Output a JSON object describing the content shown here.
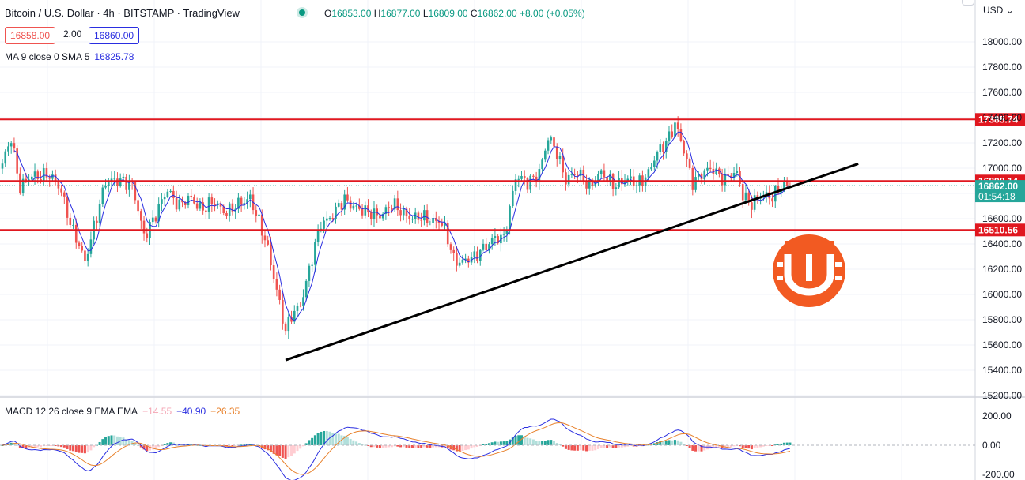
{
  "header": {
    "title": "Bitcoin / U.S. Dollar · 4h · BITSTAMP · TradingView",
    "open_label": "O",
    "open": "16853.00",
    "high_label": "H",
    "high": "16877.00",
    "low_label": "L",
    "low": "16809.00",
    "close_label": "C",
    "close": "16862.00",
    "change": "+8.00 (+0.05%)"
  },
  "trade": {
    "sell": "16858.00",
    "spread": "2.00",
    "buy": "16860.00"
  },
  "ma_legend": {
    "label": "MA 9 close 0 SMA 5",
    "value": "16825.78"
  },
  "macd_legend": {
    "label": "MACD 12 26 close 9 EMA EMA",
    "hist": "−14.55",
    "macd": "−40.90",
    "signal": "−26.35"
  },
  "currency": "USD",
  "colors": {
    "up": "#26a69a",
    "down": "#ef5350",
    "ma": "#2a2ee0",
    "level": "#e0171f",
    "signal": "#e8822d",
    "logo": "#f25a22"
  },
  "price_axis": {
    "ticks": [
      "18000.00",
      "17800.00",
      "17600.00",
      "17400.00",
      "17200.00",
      "17000.00",
      "16800.00",
      "16600.00",
      "16400.00",
      "16200.00",
      "16000.00",
      "15800.00",
      "15600.00",
      "15400.00",
      "15200.00"
    ],
    "current_price": "16862.00",
    "countdown": "01:54:18"
  },
  "macd_axis": {
    "ticks": [
      "200.00",
      "0.00",
      "-200.00"
    ]
  },
  "chart_data": {
    "type": "candlestick",
    "timeframe": "4h",
    "ylim": [
      15200,
      18150
    ],
    "levels": [
      {
        "label": "17385.74",
        "value": 17385.74
      },
      {
        "label": "16898.14",
        "value": 16898.14
      },
      {
        "label": "16510.56",
        "value": 16510.56
      }
    ],
    "trendline": {
      "start_index": 96,
      "start_price": 15480,
      "end_index": 266,
      "end_price": 16960
    },
    "close_anchors": [
      [
        0,
        17020
      ],
      [
        3,
        17250
      ],
      [
        6,
        16850
      ],
      [
        10,
        16930
      ],
      [
        15,
        16960
      ],
      [
        20,
        16820
      ],
      [
        24,
        16500
      ],
      [
        28,
        16250
      ],
      [
        31,
        16550
      ],
      [
        35,
        16880
      ],
      [
        40,
        16920
      ],
      [
        44,
        16850
      ],
      [
        48,
        16480
      ],
      [
        52,
        16620
      ],
      [
        56,
        16840
      ],
      [
        60,
        16700
      ],
      [
        64,
        16760
      ],
      [
        68,
        16680
      ],
      [
        72,
        16720
      ],
      [
        76,
        16660
      ],
      [
        80,
        16700
      ],
      [
        84,
        16780
      ],
      [
        86,
        16640
      ],
      [
        90,
        16350
      ],
      [
        93,
        16050
      ],
      [
        96,
        15700
      ],
      [
        98,
        15820
      ],
      [
        101,
        15930
      ],
      [
        105,
        16280
      ],
      [
        108,
        16560
      ],
      [
        112,
        16640
      ],
      [
        116,
        16740
      ],
      [
        120,
        16700
      ],
      [
        124,
        16630
      ],
      [
        128,
        16640
      ],
      [
        132,
        16700
      ],
      [
        136,
        16650
      ],
      [
        140,
        16600
      ],
      [
        144,
        16600
      ],
      [
        148,
        16590
      ],
      [
        150,
        16500
      ],
      [
        153,
        16280
      ],
      [
        156,
        16270
      ],
      [
        160,
        16280
      ],
      [
        163,
        16380
      ],
      [
        166,
        16430
      ],
      [
        170,
        16440
      ],
      [
        174,
        16940
      ],
      [
        178,
        16870
      ],
      [
        182,
        16980
      ],
      [
        185,
        17230
      ],
      [
        188,
        17120
      ],
      [
        191,
        16920
      ],
      [
        195,
        16950
      ],
      [
        199,
        16870
      ],
      [
        203,
        16950
      ],
      [
        207,
        16880
      ],
      [
        211,
        16900
      ],
      [
        215,
        16880
      ],
      [
        219,
        16960
      ],
      [
        222,
        17110
      ],
      [
        225,
        17220
      ],
      [
        228,
        17350
      ],
      [
        231,
        17130
      ],
      [
        234,
        16900
      ],
      [
        237,
        16950
      ],
      [
        241,
        16990
      ],
      [
        245,
        16920
      ],
      [
        249,
        16950
      ],
      [
        251,
        16800
      ],
      [
        254,
        16720
      ],
      [
        257,
        16770
      ],
      [
        261,
        16790
      ],
      [
        264,
        16850
      ]
    ],
    "ma": {
      "name": "MA 9 close 0 SMA 5",
      "last": 16825.78
    },
    "macd": {
      "name": "MACD 12 26 close 9 EMA EMA",
      "ylim": [
        -200,
        200
      ],
      "last": {
        "hist": -14.55,
        "macd": -40.9,
        "signal": -26.35
      }
    }
  }
}
